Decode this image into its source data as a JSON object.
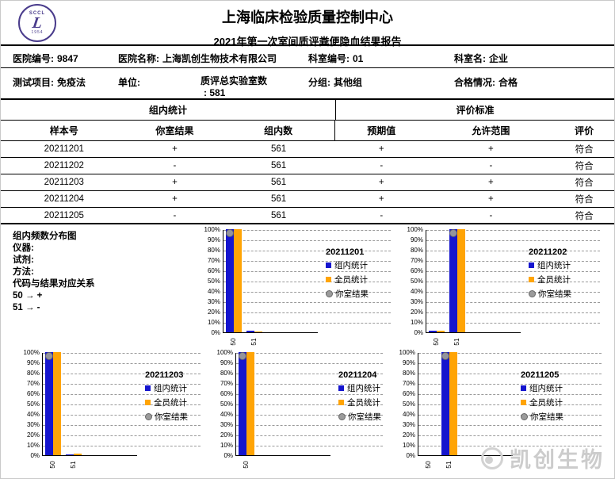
{
  "page": {
    "title": "上海临床检验质量控制中心",
    "subtitle": "2021年第一次室间质评粪便隐血结果报告",
    "logo": {
      "top_text": "SCCL",
      "center_glyph": "L",
      "bottom_text": "1954"
    },
    "watermark_text": "凯创生物"
  },
  "info": {
    "row1": [
      {
        "label": "医院编号:",
        "value": "9847"
      },
      {
        "label": "医院名称:",
        "value": "上海凯创生物技术有限公司"
      },
      {
        "label": "科室编号:",
        "value": "01"
      },
      {
        "label": "科室名:",
        "value": "企业"
      }
    ],
    "row2": [
      {
        "label": "测试项目:",
        "value": "免疫法"
      },
      {
        "label": "单位:",
        "value": ""
      },
      {
        "label": "质评总实验室数",
        "value": ": 581"
      },
      {
        "label": "分组:",
        "value": "其他组"
      },
      {
        "label": "合格情况:",
        "value": "合格"
      }
    ]
  },
  "table": {
    "group_headers": [
      "组内统计",
      "评价标准"
    ],
    "columns": [
      "样本号",
      "你室结果",
      "组内数",
      "预期值",
      "允许范围",
      "评价"
    ],
    "rows": [
      [
        "20211201",
        "+",
        "561",
        "+",
        "+",
        "符合"
      ],
      [
        "20211202",
        "-",
        "561",
        "-",
        "-",
        "符合"
      ],
      [
        "20211203",
        "+",
        "561",
        "+",
        "+",
        "符合"
      ],
      [
        "20211204",
        "+",
        "561",
        "+",
        "+",
        "符合"
      ],
      [
        "20211205",
        "-",
        "561",
        "-",
        "-",
        "符合"
      ]
    ]
  },
  "notes": {
    "heading": "组内频数分布图",
    "instrument_label": "仪器:",
    "reagent_label": "试剂:",
    "method_label": "方法:",
    "mapping_heading": "代码与结果对应关系",
    "mappings": [
      "50 → +",
      "51 → -"
    ]
  },
  "colors": {
    "group_bar": "#1515CE",
    "global_bar": "#FFA405",
    "your_dot": "#9B9B9B",
    "grid": "#9A9A9A",
    "logo_purple": "#4A3C8C",
    "watermark_gray": "#CCCCCC"
  },
  "chart_data": [
    {
      "type": "bar",
      "title": "20211201",
      "categories": [
        "50",
        "51"
      ],
      "series": [
        {
          "name": "组内统计",
          "values": [
            100,
            1.5
          ]
        },
        {
          "name": "全员统计",
          "values": [
            100,
            1
          ]
        }
      ],
      "your_result": {
        "name": "你室结果",
        "category": "50",
        "value": 96
      },
      "ylim": [
        0,
        100
      ],
      "yticks": [
        "0%",
        "10%",
        "20%",
        "30%",
        "40%",
        "50%",
        "60%",
        "70%",
        "80%",
        "90%",
        "100%"
      ],
      "grid": true,
      "legend_position": "right"
    },
    {
      "type": "bar",
      "title": "20211202",
      "categories": [
        "50",
        "51"
      ],
      "series": [
        {
          "name": "组内统计",
          "values": [
            1.5,
            100
          ]
        },
        {
          "name": "全员统计",
          "values": [
            1.5,
            100
          ]
        }
      ],
      "your_result": {
        "name": "你室结果",
        "category": "51",
        "value": 96
      },
      "ylim": [
        0,
        100
      ],
      "yticks": [
        "0%",
        "10%",
        "20%",
        "30%",
        "40%",
        "50%",
        "60%",
        "70%",
        "80%",
        "90%",
        "100%"
      ],
      "grid": true,
      "legend_position": "right"
    },
    {
      "type": "bar",
      "title": "20211203",
      "categories": [
        "50",
        "51"
      ],
      "series": [
        {
          "name": "组内统计",
          "values": [
            100,
            1
          ]
        },
        {
          "name": "全员统计",
          "values": [
            100,
            1.2
          ]
        }
      ],
      "your_result": {
        "name": "你室结果",
        "category": "50",
        "value": 96
      },
      "ylim": [
        0,
        100
      ],
      "yticks": [
        "0%",
        "10%",
        "20%",
        "30%",
        "40%",
        "50%",
        "60%",
        "70%",
        "80%",
        "90%",
        "100%"
      ],
      "grid": true,
      "legend_position": "right"
    },
    {
      "type": "bar",
      "title": "20211204",
      "categories": [
        "50"
      ],
      "series": [
        {
          "name": "组内统计",
          "values": [
            100
          ]
        },
        {
          "name": "全员统计",
          "values": [
            100
          ]
        }
      ],
      "your_result": {
        "name": "你室结果",
        "category": "50",
        "value": 96
      },
      "ylim": [
        0,
        100
      ],
      "yticks": [
        "0%",
        "10%",
        "20%",
        "30%",
        "40%",
        "50%",
        "60%",
        "70%",
        "80%",
        "90%",
        "100%"
      ],
      "grid": true,
      "legend_position": "right"
    },
    {
      "type": "bar",
      "title": "20211205",
      "categories": [
        "50",
        "51"
      ],
      "series": [
        {
          "name": "组内统计",
          "values": [
            0,
            100
          ]
        },
        {
          "name": "全员统计",
          "values": [
            0,
            100
          ]
        }
      ],
      "your_result": {
        "name": "你室结果",
        "category": "51",
        "value": 96
      },
      "ylim": [
        0,
        100
      ],
      "yticks": [
        "0%",
        "10%",
        "20%",
        "30%",
        "40%",
        "50%",
        "60%",
        "70%",
        "80%",
        "90%",
        "100%"
      ],
      "grid": true,
      "legend_position": "right"
    }
  ]
}
